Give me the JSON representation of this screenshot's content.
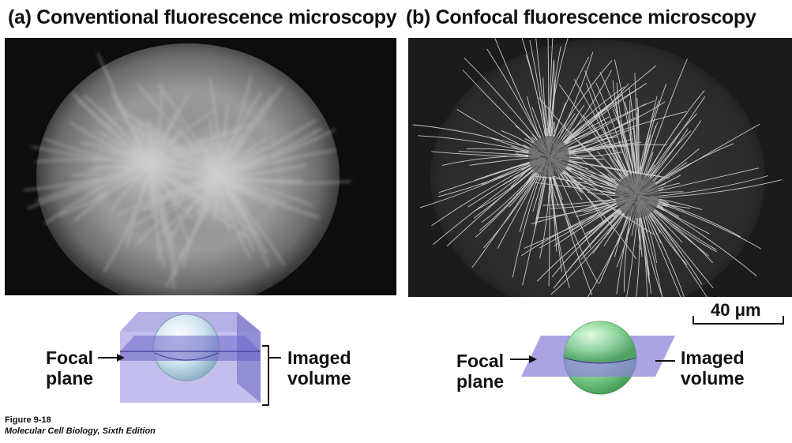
{
  "panel_a": {
    "title": "(a) Conventional fluorescence microscopy",
    "focal_label": [
      "Focal",
      "plane"
    ],
    "volume_label": [
      "Imaged",
      "volume"
    ]
  },
  "panel_b": {
    "title": "(b) Confocal fluorescence microscopy",
    "focal_label": [
      "Focal",
      "plane"
    ],
    "volume_label": [
      "Imaged",
      "volume"
    ]
  },
  "scale_bar": {
    "label": "40 μm"
  },
  "caption": {
    "figure": "Figure 9-18",
    "book": "Molecular Cell Biology, Sixth Edition"
  },
  "colors": {
    "slab_purple": "#8d86d8",
    "sphere_blue": "#cfe4ef",
    "sphere_green": "#8fd89a",
    "micrograph_bg": "#111111"
  }
}
